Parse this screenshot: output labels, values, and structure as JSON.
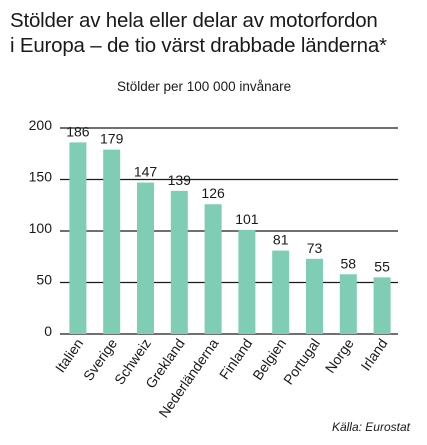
{
  "title_line1": "Stölder av hela eller delar av motorfordon",
  "title_line2": "i Europa – de tio värst drabbade länderna*",
  "source": "Källa: Eurostat",
  "chart_data": {
    "type": "bar",
    "title": "Stölder av hela eller delar av motorfordon i Europa – de tio värst drabbade länderna*",
    "subtitle": "Stölder per 100 000 invånare",
    "categories": [
      "Italien",
      "Sverige",
      "Schweiz",
      "Grekland",
      "Nederländerna",
      "Finland",
      "Belgien",
      "Portugal",
      "Norge",
      "Irland"
    ],
    "values": [
      186,
      179,
      147,
      139,
      126,
      101,
      81,
      73,
      58,
      55
    ],
    "data_labels": [
      "186",
      "179",
      "147",
      "139",
      "126",
      "101",
      "81",
      "73",
      "58",
      "55"
    ],
    "yticks": [
      0,
      50,
      100,
      150,
      200
    ],
    "ytick_labels": [
      "0",
      "50",
      "100",
      "150",
      "200"
    ],
    "ylim": [
      0,
      200
    ],
    "xlabel": "",
    "ylabel": "",
    "grid": true,
    "bar_color": "#7fcdb5",
    "grid_color": "#1a1a1a"
  }
}
